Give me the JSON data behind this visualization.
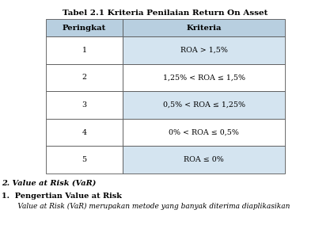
{
  "title": "Tabel 2.1 Kriteria Penilaian Return On Asset",
  "col_headers": [
    "Peringkat",
    "Kriteria"
  ],
  "rows": [
    [
      "1",
      "ROA > 1,5%"
    ],
    [
      "2",
      "1,25% < ROA ≤ 1,5%"
    ],
    [
      "3",
      "0,5% < ROA ≤ 1,25%"
    ],
    [
      "4",
      "0% < ROA ≤ 0,5%"
    ],
    [
      "5",
      "ROA ≤ 0%"
    ]
  ],
  "footer_line1": "2. Value at Risk (VaR)",
  "footer_line2": "1.  Pengertian Value at Risk",
  "footer_line3": "     Value at Risk (VaR) merupakan metode yang banyak diterima diaplikasikan",
  "bg_color": "#ffffff",
  "header_bg": "#b8cfe0",
  "row_bg_blue": "#d4e4f0",
  "row_bg_white": "#ffffff",
  "border_color": "#555555",
  "title_fontsize": 7.5,
  "header_fontsize": 7.2,
  "cell_fontsize": 6.8,
  "footer1_fontsize": 7.0,
  "footer2_fontsize": 7.0,
  "footer3_fontsize": 6.5
}
